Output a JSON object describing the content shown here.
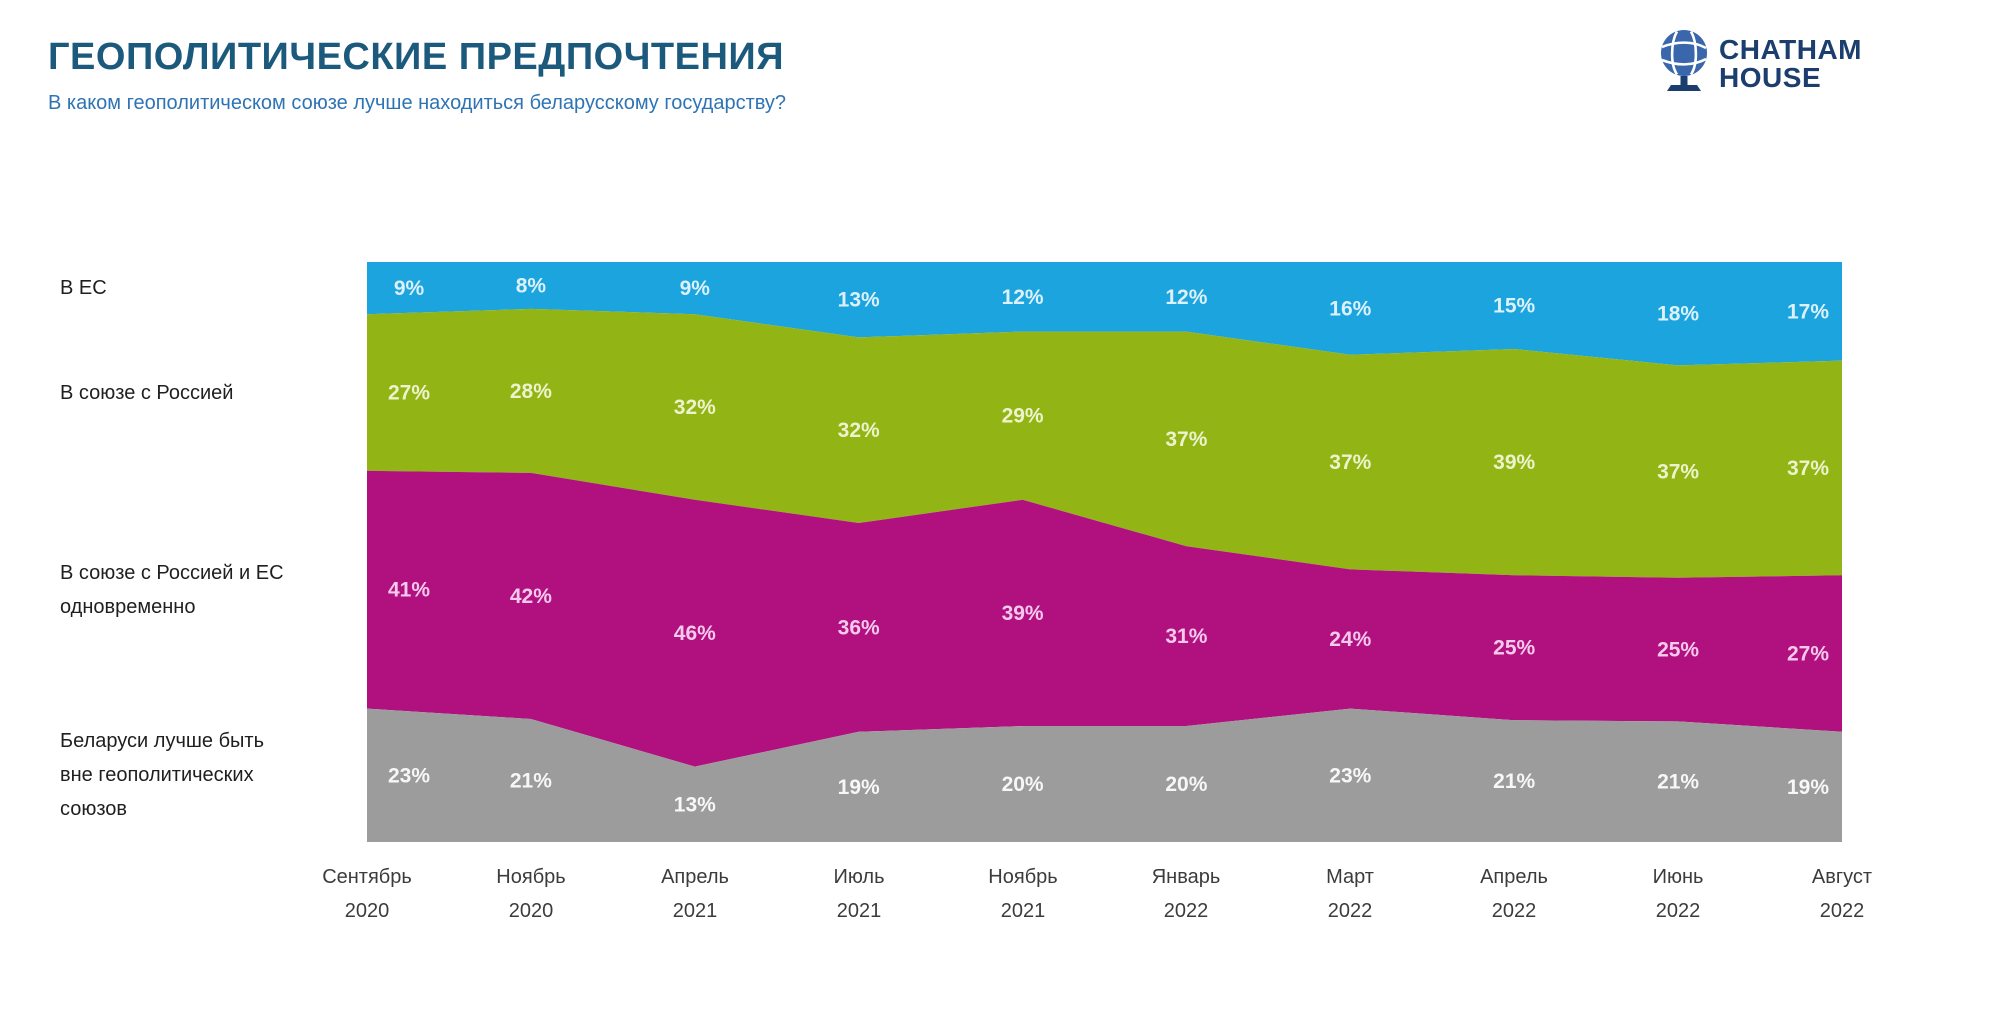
{
  "header": {
    "title": "ГЕОПОЛИТИЧЕСКИЕ ПРЕДПОЧТЕНИЯ",
    "subtitle": "В каком геополитическом союзе лучше находиться беларусскому государству?"
  },
  "logo": {
    "line1": "CHATHAM",
    "line2": "HOUSE",
    "text_color": "#1c3e6e",
    "globe_color": "#3a67ac",
    "stand_color": "#1c3e6e"
  },
  "chart_data": {
    "type": "area",
    "stacked": true,
    "stack_order": "top-to-bottom",
    "grid": false,
    "legend_position": "left",
    "ylim": [
      0,
      100
    ],
    "value_suffix": "%",
    "categories": [
      {
        "month": "Сентябрь",
        "year": "2020"
      },
      {
        "month": "Ноябрь",
        "year": "2020"
      },
      {
        "month": "Апрель",
        "year": "2021"
      },
      {
        "month": "Июль",
        "year": "2021"
      },
      {
        "month": "Ноябрь",
        "year": "2021"
      },
      {
        "month": "Январь",
        "year": "2022"
      },
      {
        "month": "Март",
        "year": "2022"
      },
      {
        "month": "Апрель",
        "year": "2022"
      },
      {
        "month": "Июнь",
        "year": "2022"
      },
      {
        "month": "Август",
        "year": "2022"
      }
    ],
    "series": [
      {
        "name": "В ЕС",
        "label_lines": [
          "В ЕС"
        ],
        "color": "#1ba4dd",
        "label_color": "#dcf1fb",
        "values": [
          9,
          8,
          9,
          13,
          12,
          12,
          16,
          15,
          18,
          17
        ]
      },
      {
        "name": "В союзе с Россией",
        "label_lines": [
          "В союзе с Россией"
        ],
        "color": "#92b414",
        "label_color": "#edf3cd",
        "values": [
          27,
          28,
          32,
          32,
          29,
          37,
          37,
          39,
          37,
          37
        ]
      },
      {
        "name": "В союзе с Россией и ЕС одновременно",
        "label_lines": [
          "В союзе с Россией и ЕС",
          "одновременно"
        ],
        "color": "#b0117e",
        "label_color": "#f5c9ec",
        "values": [
          41,
          42,
          46,
          36,
          39,
          31,
          24,
          25,
          25,
          27
        ]
      },
      {
        "name": "Беларуси лучше быть вне геополитических союзов",
        "label_lines": [
          "Беларуси лучше быть",
          "вне геополитических",
          "союзов"
        ],
        "color": "#9c9c9c",
        "label_color": "#f7f7f7",
        "values": [
          23,
          21,
          13,
          19,
          20,
          20,
          23,
          21,
          21,
          19
        ]
      }
    ]
  }
}
